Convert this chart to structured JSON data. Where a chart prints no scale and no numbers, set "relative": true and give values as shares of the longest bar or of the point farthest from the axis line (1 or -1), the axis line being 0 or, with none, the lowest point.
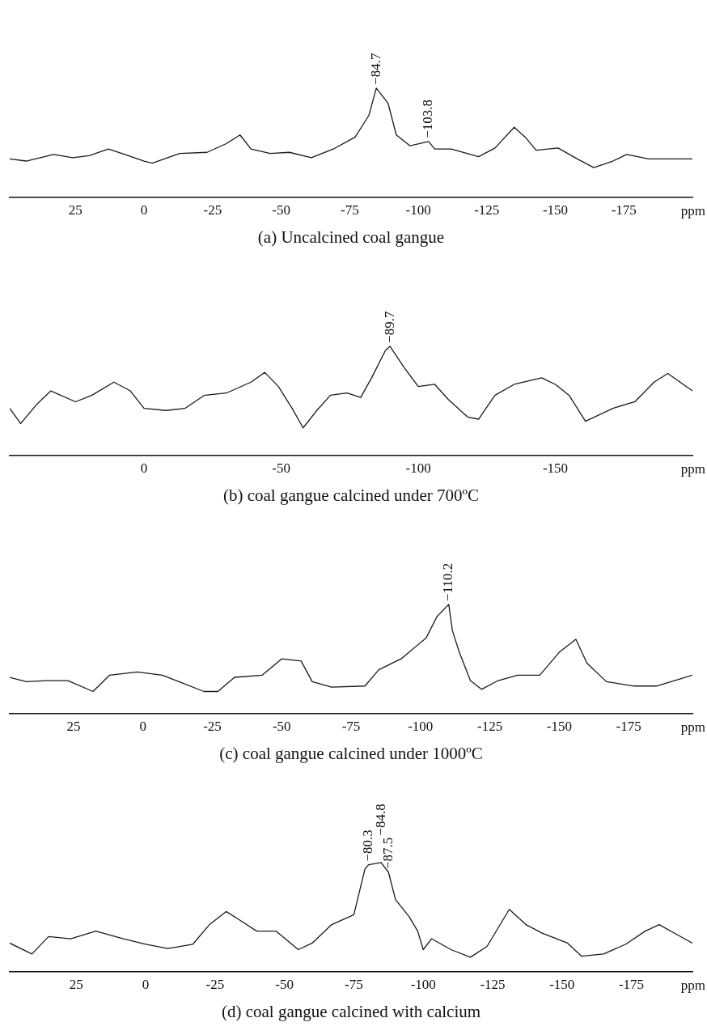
{
  "chart_data": [
    {
      "type": "line",
      "title": "(a) Uncalcined coal gangue",
      "xlabel": "ppm",
      "relative": true,
      "legend": false,
      "grid": false,
      "tick_labels": "x",
      "xlim": [
        49,
        -200
      ],
      "xticks": [
        25,
        0,
        -25,
        -50,
        -75,
        -100,
        -125,
        -150,
        -175
      ],
      "series": [
        {
          "color": "#1a1a1a",
          "x": [
            49,
            43,
            33,
            26,
            20,
            13,
            7,
            0,
            -3,
            -13,
            -23,
            -30,
            -35,
            -39,
            -46,
            -53,
            -61,
            -69,
            -77,
            -82,
            -84.7,
            -89,
            -92,
            -97,
            -103.8,
            -106,
            -112,
            -122,
            -128,
            -135,
            -139,
            -143,
            -151,
            -158,
            -164,
            -171,
            -176,
            -184,
            -200
          ],
          "values": [
            0.35,
            0.33,
            0.39,
            0.36,
            0.38,
            0.44,
            0.39,
            0.33,
            0.31,
            0.4,
            0.41,
            0.49,
            0.57,
            0.44,
            0.4,
            0.41,
            0.36,
            0.44,
            0.55,
            0.75,
            1,
            0.86,
            0.57,
            0.47,
            0.51,
            0.44,
            0.44,
            0.37,
            0.45,
            0.64,
            0.55,
            0.43,
            0.45,
            0.35,
            0.27,
            0.33,
            0.39,
            0.35,
            0.35
          ]
        }
      ],
      "annotations": [
        {
          "text": "−84.7",
          "x": -84.7,
          "y": 1
        },
        {
          "text": "−103.8",
          "x": -103.8,
          "y": 0.51
        }
      ]
    },
    {
      "type": "line",
      "title": "(b) coal gangue calcined under 700ºC",
      "xlabel": "ppm",
      "relative": true,
      "legend": false,
      "grid": false,
      "tick_labels": "x",
      "xlim": [
        49,
        -200
      ],
      "xticks": [
        0,
        -50,
        -100,
        -150
      ],
      "series": [
        {
          "color": "#1a1a1a",
          "x": [
            49,
            45,
            39,
            34,
            25,
            19,
            11,
            5,
            0,
            -8,
            -15,
            -22,
            -30,
            -39,
            -44,
            -49,
            -54,
            -58,
            -63,
            -68,
            -74,
            -79,
            -83,
            -88,
            -89.7,
            -91,
            -95,
            -100,
            -106,
            -111,
            -118,
            -122,
            -128,
            -135,
            -145,
            -150,
            -155,
            -161,
            -171,
            -179,
            -186,
            -191,
            -200
          ],
          "values": [
            0.43,
            0.29,
            0.47,
            0.59,
            0.49,
            0.55,
            0.67,
            0.59,
            0.43,
            0.41,
            0.43,
            0.55,
            0.57,
            0.67,
            0.76,
            0.63,
            0.43,
            0.25,
            0.41,
            0.55,
            0.57,
            0.53,
            0.71,
            0.96,
            1,
            0.95,
            0.8,
            0.63,
            0.65,
            0.51,
            0.35,
            0.33,
            0.55,
            0.65,
            0.71,
            0.65,
            0.55,
            0.31,
            0.43,
            0.49,
            0.67,
            0.75,
            0.59
          ]
        }
      ],
      "annotations": [
        {
          "text": "−89.7",
          "x": -89.7,
          "y": 1
        }
      ]
    },
    {
      "type": "line",
      "title": "(c) coal gangue calcined under 1000ºC",
      "xlabel": "ppm",
      "relative": true,
      "legend": false,
      "grid": false,
      "tick_labels": "x",
      "xlim": [
        48,
        -198
      ],
      "xticks": [
        25,
        0,
        -25,
        -50,
        -75,
        -100,
        -125,
        -150,
        -175
      ],
      "series": [
        {
          "color": "#1a1a1a",
          "x": [
            48,
            42,
            35,
            27,
            18,
            12,
            2,
            -7,
            -13,
            -22,
            -27,
            -33,
            -43,
            -50,
            -57,
            -61,
            -68,
            -80,
            -85,
            -93,
            -102,
            -106,
            -110.2,
            -111.5,
            -114,
            -118,
            -122,
            -128,
            -135,
            -143,
            -150,
            -156,
            -160,
            -167,
            -177,
            -185,
            -198
          ],
          "values": [
            0.33,
            0.29,
            0.3,
            0.3,
            0.2,
            0.35,
            0.38,
            0.35,
            0.29,
            0.2,
            0.2,
            0.33,
            0.35,
            0.5,
            0.48,
            0.29,
            0.24,
            0.25,
            0.4,
            0.5,
            0.69,
            0.89,
            1,
            0.76,
            0.56,
            0.3,
            0.22,
            0.3,
            0.35,
            0.35,
            0.56,
            0.68,
            0.46,
            0.29,
            0.25,
            0.25,
            0.35
          ]
        }
      ],
      "annotations": [
        {
          "text": "−110.2",
          "x": -110.2,
          "y": 1
        }
      ]
    },
    {
      "type": "line",
      "title": "(d) coal gangue calcined with calcium",
      "xlabel": "ppm",
      "relative": true,
      "legend": false,
      "grid": false,
      "tick_labels": "x",
      "xlim": [
        49,
        -197
      ],
      "xticks": [
        25,
        0,
        -25,
        -50,
        -75,
        -100,
        -125,
        -150,
        -175
      ],
      "series": [
        {
          "color": "#1a1a1a",
          "x": [
            49,
            41,
            35,
            27,
            18,
            8,
            0,
            -8,
            -17,
            -23,
            -29,
            -34,
            -40,
            -47,
            -55,
            -60,
            -67,
            -75,
            -79,
            -80.3,
            -84.8,
            -87.5,
            -90,
            -95,
            -98,
            -100,
            -103,
            -110,
            -117,
            -123,
            -131,
            -137,
            -143,
            -152,
            -157,
            -165,
            -173,
            -180,
            -185,
            -192,
            -197
          ],
          "values": [
            0.26,
            0.16,
            0.32,
            0.3,
            0.37,
            0.3,
            0.25,
            0.21,
            0.25,
            0.43,
            0.55,
            0.47,
            0.37,
            0.37,
            0.2,
            0.26,
            0.43,
            0.52,
            0.94,
            0.98,
            1,
            0.91,
            0.66,
            0.5,
            0.37,
            0.2,
            0.3,
            0.2,
            0.13,
            0.23,
            0.57,
            0.43,
            0.35,
            0.26,
            0.14,
            0.16,
            0.25,
            0.37,
            0.43,
            0.33,
            0.26
          ]
        }
      ],
      "annotations": [
        {
          "text": "−80.3",
          "x": -80.3,
          "y": 0.98
        },
        {
          "text": "−87.5",
          "x": -87.5,
          "y": 0.91
        },
        {
          "text": "−84.8",
          "x": -84.8,
          "y": 1
        }
      ]
    }
  ]
}
